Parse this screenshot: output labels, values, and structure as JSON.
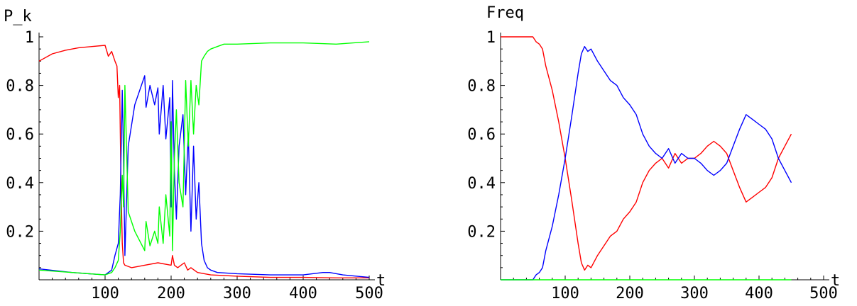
{
  "chart_data": [
    {
      "type": "line",
      "title": "",
      "ylabel": "P_k",
      "xlabel": "t",
      "xlim": [
        0,
        500
      ],
      "ylim": [
        0,
        1
      ],
      "xticks": [
        100,
        200,
        300,
        400,
        500
      ],
      "xtick_labels": [
        "100",
        "200",
        "300",
        "400",
        "500"
      ],
      "yticks": [
        0.2,
        0.4,
        0.6,
        0.8,
        1
      ],
      "ytick_labels": [
        "0.2",
        "0.4",
        "0.6",
        "0.8",
        "1"
      ],
      "grid": false,
      "series": [
        {
          "color": "#ff0000",
          "x": [
            0,
            20,
            40,
            60,
            80,
            100,
            105,
            110,
            115,
            118,
            120,
            122,
            124,
            126,
            128,
            130,
            140,
            160,
            180,
            200,
            202,
            205,
            210,
            220,
            225,
            230,
            240,
            260,
            300,
            350,
            400,
            450,
            500
          ],
          "y": [
            0.9,
            0.93,
            0.945,
            0.955,
            0.96,
            0.965,
            0.92,
            0.94,
            0.9,
            0.88,
            0.75,
            0.8,
            0.42,
            0.15,
            0.07,
            0.06,
            0.05,
            0.06,
            0.07,
            0.06,
            0.1,
            0.06,
            0.05,
            0.07,
            0.04,
            0.05,
            0.03,
            0.02,
            0.015,
            0.01,
            0.01,
            0.008,
            0.008
          ]
        },
        {
          "color": "#0000ff",
          "x": [
            0,
            50,
            100,
            110,
            115,
            120,
            123,
            126,
            128,
            130,
            135,
            145,
            160,
            162,
            168,
            175,
            180,
            182,
            188,
            192,
            198,
            200,
            202,
            205,
            208,
            212,
            218,
            222,
            226,
            230,
            234,
            238,
            242,
            246,
            250,
            255,
            260,
            270,
            300,
            350,
            400,
            430,
            440,
            460,
            500
          ],
          "y": [
            0.045,
            0.03,
            0.02,
            0.04,
            0.1,
            0.15,
            0.35,
            0.78,
            0.5,
            0.1,
            0.55,
            0.72,
            0.84,
            0.71,
            0.8,
            0.72,
            0.79,
            0.6,
            0.8,
            0.58,
            0.75,
            0.3,
            0.82,
            0.45,
            0.25,
            0.55,
            0.68,
            0.35,
            0.6,
            0.2,
            0.55,
            0.25,
            0.4,
            0.15,
            0.08,
            0.05,
            0.04,
            0.03,
            0.025,
            0.02,
            0.02,
            0.03,
            0.03,
            0.02,
            0.01
          ]
        },
        {
          "color": "#00ff00",
          "x": [
            0,
            50,
            100,
            110,
            115,
            120,
            123,
            126,
            128,
            130,
            135,
            145,
            160,
            162,
            168,
            175,
            180,
            182,
            188,
            192,
            198,
            200,
            202,
            205,
            208,
            212,
            218,
            222,
            226,
            230,
            234,
            238,
            242,
            246,
            250,
            255,
            260,
            270,
            280,
            300,
            350,
            400,
            450,
            500
          ],
          "y": [
            0.04,
            0.03,
            0.02,
            0.03,
            0.05,
            0.08,
            0.2,
            0.43,
            0.3,
            0.8,
            0.28,
            0.2,
            0.12,
            0.24,
            0.14,
            0.2,
            0.15,
            0.3,
            0.15,
            0.35,
            0.18,
            0.65,
            0.12,
            0.5,
            0.7,
            0.4,
            0.3,
            0.82,
            0.55,
            0.82,
            0.6,
            0.8,
            0.72,
            0.9,
            0.92,
            0.94,
            0.95,
            0.96,
            0.97,
            0.97,
            0.975,
            0.975,
            0.97,
            0.98
          ]
        }
      ]
    },
    {
      "type": "line",
      "title": "",
      "ylabel": "Freq",
      "xlabel": "t",
      "xlim": [
        0,
        500
      ],
      "ylim": [
        0,
        1
      ],
      "xticks": [
        100,
        200,
        300,
        400,
        500
      ],
      "xtick_labels": [
        "100",
        "200",
        "300",
        "400",
        "500"
      ],
      "yticks": [
        0.2,
        0.4,
        0.6,
        0.8,
        1
      ],
      "ytick_labels": [
        "0.2",
        "0.4",
        "0.6",
        "0.8",
        "1"
      ],
      "grid": false,
      "series": [
        {
          "color": "#ff0000",
          "x": [
            0,
            30,
            50,
            55,
            60,
            65,
            70,
            80,
            90,
            100,
            110,
            120,
            125,
            130,
            135,
            140,
            150,
            160,
            170,
            180,
            190,
            200,
            210,
            220,
            230,
            240,
            250,
            260,
            270,
            280,
            290,
            300,
            310,
            320,
            330,
            340,
            350,
            360,
            370,
            380,
            390,
            400,
            410,
            420,
            430,
            440,
            450
          ],
          "y": [
            1,
            1,
            1,
            0.98,
            0.97,
            0.95,
            0.88,
            0.78,
            0.65,
            0.5,
            0.33,
            0.15,
            0.07,
            0.04,
            0.06,
            0.05,
            0.1,
            0.14,
            0.18,
            0.2,
            0.25,
            0.28,
            0.32,
            0.4,
            0.45,
            0.48,
            0.5,
            0.46,
            0.52,
            0.48,
            0.5,
            0.5,
            0.52,
            0.55,
            0.57,
            0.55,
            0.52,
            0.45,
            0.38,
            0.32,
            0.34,
            0.36,
            0.38,
            0.42,
            0.5,
            0.55,
            0.6
          ]
        },
        {
          "color": "#0000ff",
          "x": [
            0,
            30,
            50,
            55,
            60,
            65,
            70,
            80,
            90,
            100,
            110,
            120,
            125,
            130,
            135,
            140,
            150,
            160,
            170,
            180,
            190,
            200,
            210,
            220,
            230,
            240,
            250,
            260,
            270,
            280,
            290,
            300,
            310,
            320,
            330,
            340,
            350,
            360,
            370,
            380,
            390,
            400,
            410,
            420,
            430,
            440,
            450
          ],
          "y": [
            0,
            0,
            0,
            0.02,
            0.03,
            0.05,
            0.12,
            0.22,
            0.35,
            0.5,
            0.67,
            0.85,
            0.93,
            0.96,
            0.94,
            0.95,
            0.9,
            0.86,
            0.82,
            0.8,
            0.75,
            0.72,
            0.68,
            0.6,
            0.55,
            0.52,
            0.5,
            0.54,
            0.48,
            0.52,
            0.5,
            0.5,
            0.48,
            0.45,
            0.43,
            0.45,
            0.48,
            0.55,
            0.62,
            0.68,
            0.66,
            0.64,
            0.62,
            0.58,
            0.5,
            0.45,
            0.4
          ]
        },
        {
          "color": "#00ff00",
          "x": [
            0,
            50,
            450
          ],
          "y": [
            0,
            0,
            0
          ]
        }
      ]
    }
  ]
}
